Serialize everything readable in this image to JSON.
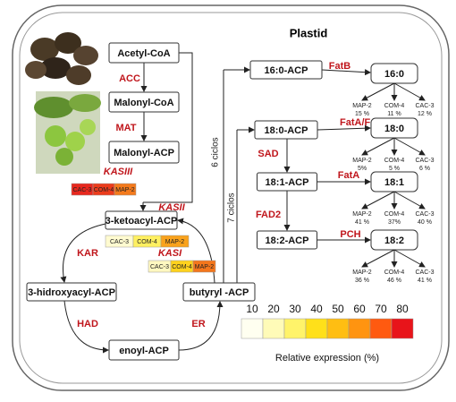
{
  "title": "Plastid",
  "nodes": [
    "Acetyl-CoA",
    "Malonyl-CoA",
    "Malonyl-ACP",
    "3-ketoacyl-ACP",
    "3-hidroxyacyl-ACP",
    "enoyl-ACP",
    "butyryl -ACP",
    "16:0-ACP",
    "18:0-ACP",
    "18:1-ACP",
    "18:2-ACP"
  ],
  "enzymes": [
    "ACC",
    "MAT",
    "KASIII",
    "KASII",
    "KASI",
    "KAR",
    "HAD",
    "ER",
    "FatB",
    "FatA/FatB",
    "SAD",
    "FatA",
    "FAD2",
    "PCH"
  ],
  "cycles": [
    "6 ciclos",
    "7 ciclos"
  ],
  "heatmaps": [
    [
      "CAC-3",
      "COM-4",
      "MAP-2"
    ],
    [
      "CAC-3",
      "COM-4",
      "MAP-2"
    ],
    [
      "CAC-3",
      "COM-4",
      "MAP-2"
    ]
  ],
  "products": [
    {
      "label": "16:0",
      "samples": [
        {
          "name": "MAP-2",
          "value": "15 %"
        },
        {
          "name": "COM-4",
          "value": "11 %"
        },
        {
          "name": "CAC-3",
          "value": "12 %"
        }
      ]
    },
    {
      "label": "18:0",
      "samples": [
        {
          "name": "MAP-2",
          "value": "5%"
        },
        {
          "name": "COM-4",
          "value": "5 %"
        },
        {
          "name": "CAC-3",
          "value": "6 %"
        }
      ]
    },
    {
      "label": "18:1",
      "samples": [
        {
          "name": "MAP-2",
          "value": "41 %"
        },
        {
          "name": "COM-4",
          "value": "37%"
        },
        {
          "name": "CAC-3",
          "value": "40 %"
        }
      ]
    },
    {
      "label": "18:2",
      "samples": [
        {
          "name": "MAP-2",
          "value": "36 %"
        },
        {
          "name": "COM-4",
          "value": "46 %"
        },
        {
          "name": "CAC-3",
          "value": "41 %"
        }
      ]
    }
  ],
  "legend": {
    "ticks": [
      10,
      20,
      30,
      40,
      50,
      60,
      70,
      80
    ],
    "label": "Relative expression (%)"
  }
}
